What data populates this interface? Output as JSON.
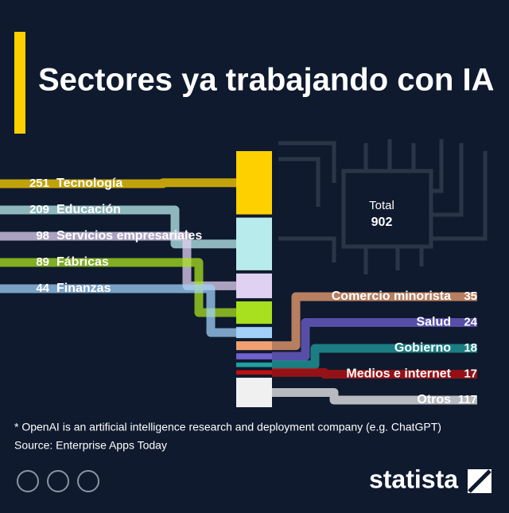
{
  "chart_data": {
    "type": "bar",
    "title": "Sectores ya trabajando con IA",
    "total_label": "Total",
    "total": 902,
    "categories": [
      "Tecnología",
      "Educación",
      "Servicios empresariales",
      "Fábricas",
      "Finanzas",
      "Comercio minorista",
      "Salud",
      "Gobierno",
      "Medios e internet",
      "Otros"
    ],
    "values": [
      251,
      209,
      98,
      89,
      44,
      35,
      24,
      18,
      17,
      117
    ],
    "colors": [
      "#ffd000",
      "#b8ecec",
      "#e0d0f2",
      "#a8e020",
      "#a0d0f8",
      "#f0a070",
      "#7060d0",
      "#20a0a0",
      "#c01010",
      "#f0f0f0"
    ],
    "footnote": "* OpenAI is an artificial intelligence research and deployment company (e.g. ChatGPT)",
    "source": "Source: Enterprise Apps Today",
    "brand": "statista"
  }
}
